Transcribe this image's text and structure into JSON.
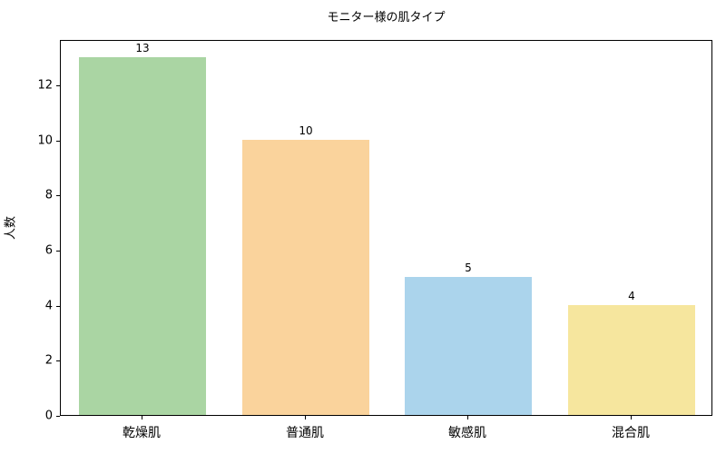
{
  "chart_data": {
    "type": "bar",
    "title": "モニター様の肌タイプ",
    "xlabel": "",
    "ylabel": "人数",
    "categories": [
      "乾燥肌",
      "普通肌",
      "敏感肌",
      "混合肌"
    ],
    "values": [
      13,
      10,
      5,
      4
    ],
    "bar_colors": [
      "#aad5a3",
      "#fad39c",
      "#abd4ec",
      "#f6e69e"
    ],
    "value_labels": [
      "13",
      "10",
      "5",
      "4"
    ],
    "y_ticks": [
      0,
      2,
      4,
      6,
      8,
      10,
      12
    ],
    "ylim": [
      0,
      13.65
    ],
    "grid": false,
    "legend": null,
    "background_color": "#ffffff",
    "spine_color": "#000000",
    "text_color": "#000000"
  }
}
